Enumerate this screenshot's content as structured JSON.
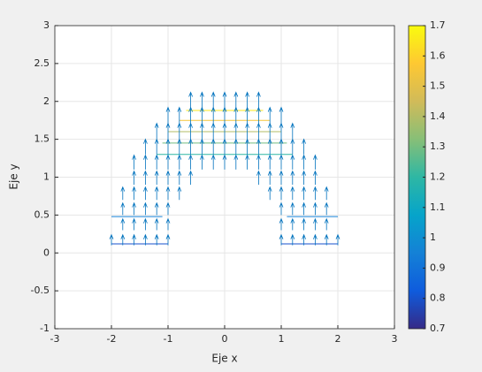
{
  "chart_data": {
    "type": "quiver",
    "xlabel": "Eje x",
    "ylabel": "Eje y",
    "xlim": [
      -3,
      3
    ],
    "xticks": [
      -3,
      -2,
      -1,
      0,
      1,
      2,
      3
    ],
    "ylim": [
      -1,
      3
    ],
    "yticks": [
      -1,
      -0.5,
      0,
      0.5,
      1,
      1.5,
      2,
      2.5,
      3
    ],
    "grid": true,
    "color": "#0072bd",
    "arrows": [
      {
        "y": 0.1,
        "v": 0.14,
        "x": [
          -2,
          -1.8,
          -1.6,
          -1.4,
          -1.2,
          -1,
          1,
          1.2,
          1.4,
          1.6,
          1.8,
          2
        ]
      },
      {
        "y": 0.3,
        "v": 0.15,
        "x": [
          -1.8,
          -1.6,
          -1.4,
          -1.2,
          -1,
          1,
          1.2,
          1.4,
          1.6,
          1.8
        ]
      },
      {
        "y": 0.5,
        "v": 0.16,
        "x": [
          -1.8,
          -1.6,
          -1.4,
          -1.2,
          -1,
          1,
          1.2,
          1.4,
          1.6,
          1.8
        ]
      },
      {
        "y": 0.7,
        "v": 0.17,
        "x": [
          -1.8,
          -1.6,
          -1.4,
          -1.2,
          -1,
          -0.8,
          0.8,
          1,
          1.2,
          1.4,
          1.6,
          1.8
        ]
      },
      {
        "y": 0.9,
        "v": 0.18,
        "x": [
          -1.6,
          -1.4,
          -1.2,
          -1,
          -0.8,
          -0.6,
          0.6,
          0.8,
          1,
          1.2,
          1.4,
          1.6
        ]
      },
      {
        "y": 1.1,
        "v": 0.19,
        "x": [
          -1.6,
          -1.4,
          -1.2,
          -1,
          -0.8,
          -0.6,
          -0.4,
          -0.2,
          0,
          0.2,
          0.4,
          0.6,
          0.8,
          1,
          1.2,
          1.4,
          1.6
        ]
      },
      {
        "y": 1.3,
        "v": 0.2,
        "x": [
          -1.4,
          -1.2,
          -1,
          -0.8,
          -0.6,
          -0.4,
          -0.2,
          0,
          0.2,
          0.4,
          0.6,
          0.8,
          1,
          1.2,
          1.4
        ]
      },
      {
        "y": 1.5,
        "v": 0.21,
        "x": [
          -1.2,
          -1,
          -0.8,
          -0.6,
          -0.4,
          -0.2,
          0,
          0.2,
          0.4,
          0.6,
          0.8,
          1,
          1.2
        ]
      },
      {
        "y": 1.7,
        "v": 0.22,
        "x": [
          -1,
          -0.8,
          -0.6,
          -0.4,
          -0.2,
          0,
          0.2,
          0.4,
          0.6,
          0.8,
          1
        ]
      },
      {
        "y": 1.9,
        "v": 0.22,
        "x": [
          -0.6,
          -0.4,
          -0.2,
          0,
          0.2,
          0.4,
          0.6
        ]
      }
    ],
    "contours": [
      {
        "level": 0.8,
        "y": 0.12,
        "segments": [
          [
            -2,
            -1
          ],
          [
            1,
            2
          ]
        ]
      },
      {
        "level": 0.95,
        "y": 0.48,
        "segments": [
          [
            -2,
            -1.1
          ],
          [
            1.1,
            2
          ]
        ]
      },
      {
        "level": 1.2,
        "y": 1.3,
        "segments": [
          [
            -1.2,
            1.2
          ]
        ]
      },
      {
        "level": 1.3,
        "y": 1.45,
        "segments": [
          [
            -1.1,
            1.1
          ]
        ]
      },
      {
        "level": 1.4,
        "y": 1.6,
        "segments": [
          [
            -1,
            1
          ]
        ]
      },
      {
        "level": 1.55,
        "y": 1.75,
        "segments": [
          [
            -0.8,
            0.8
          ]
        ]
      },
      {
        "level": 1.65,
        "y": 1.88,
        "segments": [
          [
            -0.68,
            0.68
          ]
        ]
      }
    ],
    "colorbar": {
      "clim": [
        0.7,
        1.7
      ],
      "ticks": [
        0.7,
        0.8,
        0.9,
        1,
        1.1,
        1.2,
        1.3,
        1.4,
        1.5,
        1.6,
        1.7
      ],
      "colormap": [
        "#352a87",
        "#0f5cdd",
        "#1481d6",
        "#06a4ca",
        "#2eb7a4",
        "#87bf77",
        "#d1bb59",
        "#fec832",
        "#f9fb0e"
      ]
    }
  }
}
